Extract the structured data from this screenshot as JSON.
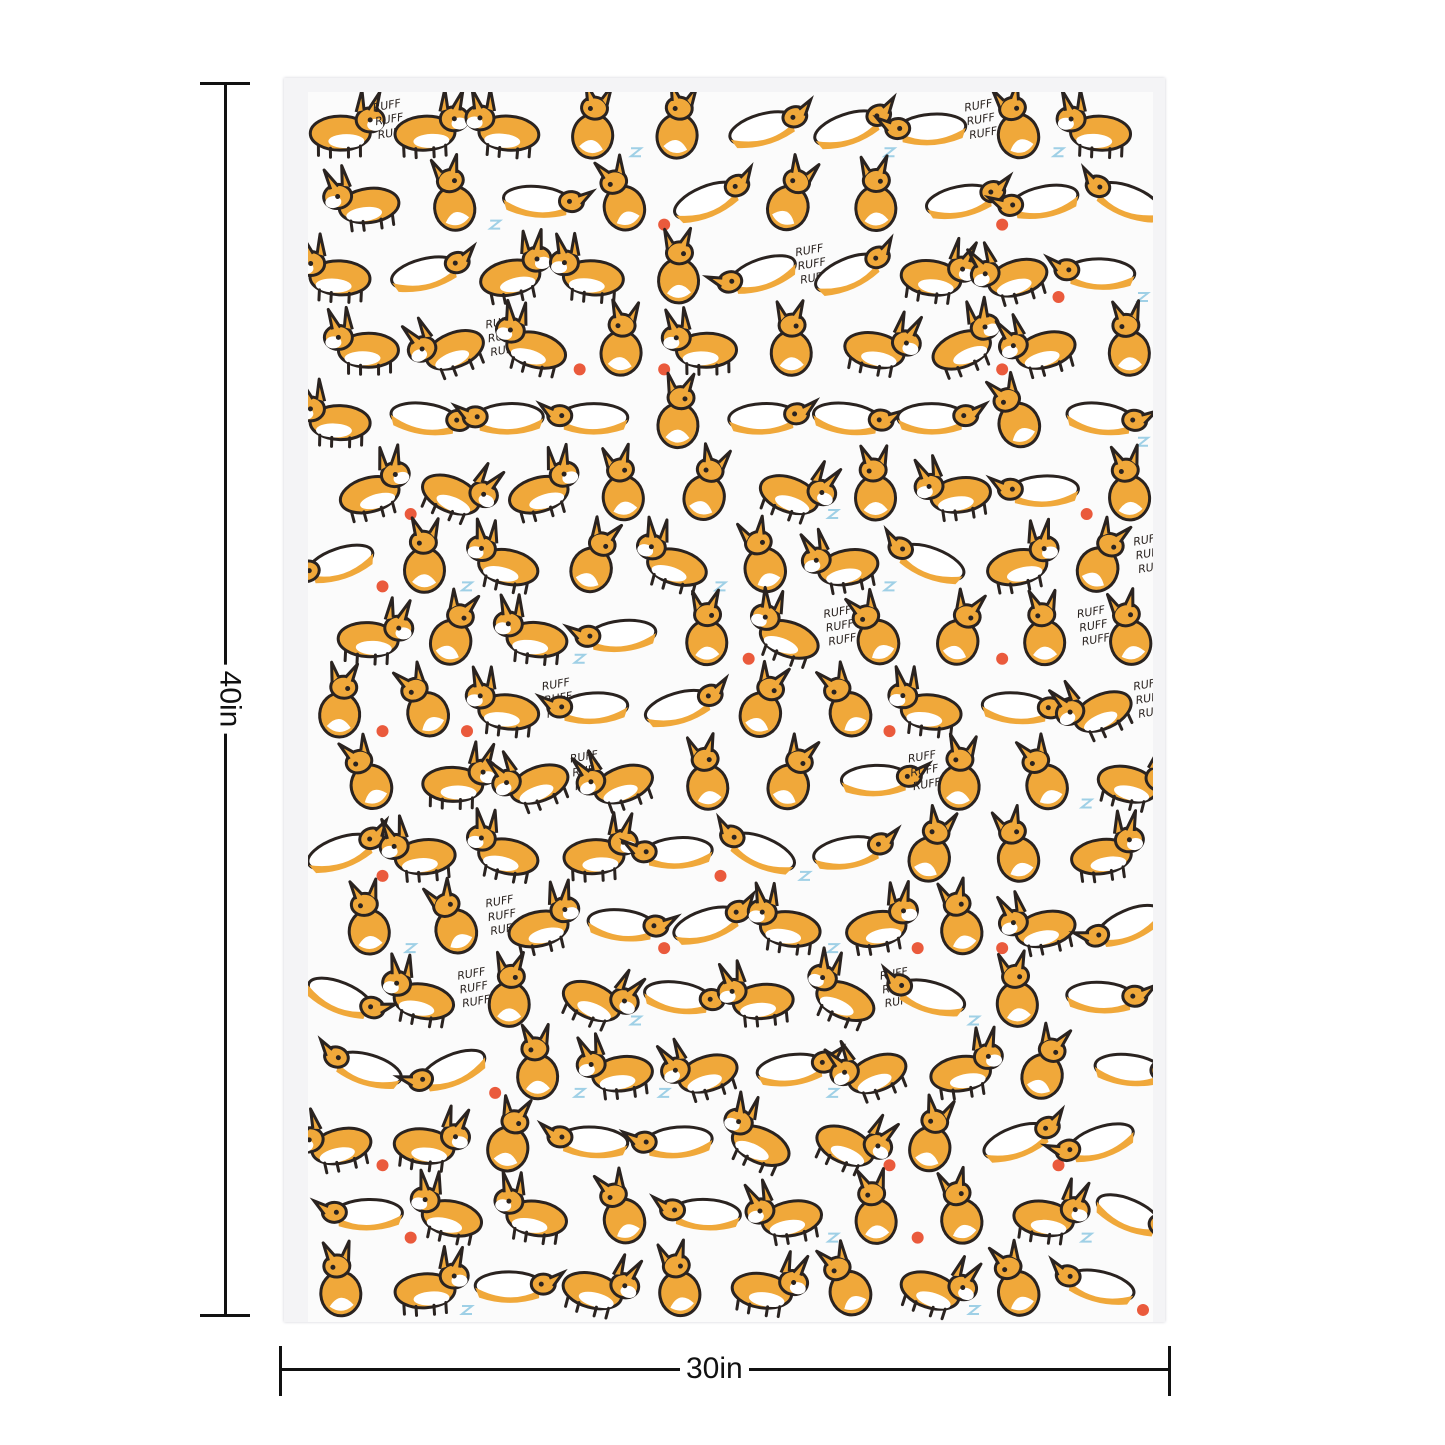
{
  "product": {
    "height_label": "40in",
    "width_label": "30in"
  },
  "pattern": {
    "motif": "corgi",
    "bark_text": [
      "RUFF",
      "RUFF",
      "RUFF"
    ],
    "colors": {
      "fur": "#f0a83a",
      "outline": "#2a2320",
      "belly": "#ffffff",
      "ball": "#ea5a3c",
      "accent": "#9fd0e6",
      "background": "#fbfbfb"
    }
  }
}
